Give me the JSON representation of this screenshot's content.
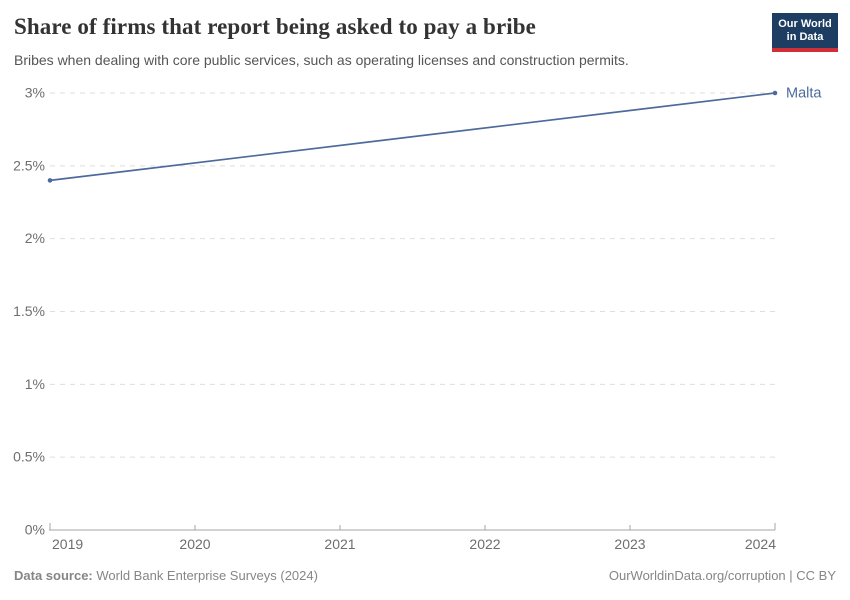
{
  "header": {
    "title": "Share of firms that report being asked to pay a bribe",
    "subtitle": "Bribes when dealing with core public services, such as operating licenses and construction permits.",
    "logo": {
      "line1": "Our World",
      "line2": "in Data"
    }
  },
  "chart_data": {
    "type": "line",
    "title": "Share of firms that report being asked to pay a bribe",
    "series": [
      {
        "name": "Malta",
        "color": "#4C6A9C",
        "x": [
          2019,
          2024
        ],
        "values": [
          2.4,
          3.0
        ]
      }
    ],
    "xlim": [
      2019,
      2024
    ],
    "ylim": [
      0,
      3
    ],
    "x_ticks": [
      2019,
      2020,
      2021,
      2022,
      2023,
      2024
    ],
    "x_tick_labels": [
      "2019",
      "2020",
      "2021",
      "2022",
      "2023",
      "2024"
    ],
    "y_ticks": [
      0,
      0.5,
      1,
      1.5,
      2,
      2.5,
      3
    ],
    "y_tick_labels": [
      "0%",
      "0.5%",
      "1%",
      "1.5%",
      "2%",
      "2.5%",
      "3%"
    ],
    "grid": "horizontal-dashed",
    "legend_position": "end-of-line-label",
    "colors": {
      "line": "#4C6A9C",
      "gridline": "#dedede",
      "axis": "#a5a5a5",
      "tick_text": "#6e6e6e"
    }
  },
  "footer": {
    "source_label": "Data source:",
    "source_text": " World Bank Enterprise Surveys (2024)",
    "attribution": "OurWorldinData.org/corruption | CC BY"
  },
  "brand": {
    "logo_bg": "#1d3d63",
    "logo_stripe": "#cf3037"
  }
}
